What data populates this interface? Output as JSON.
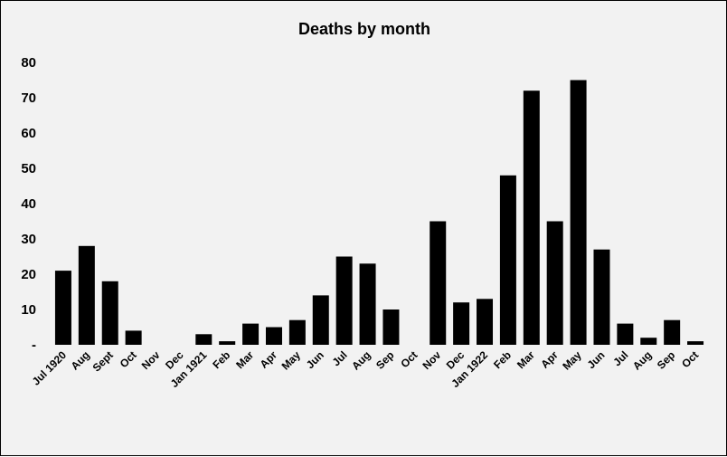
{
  "chart_data": {
    "type": "bar",
    "title": "Deaths by month",
    "xlabel": "",
    "ylabel": "",
    "ylim": [
      0,
      80
    ],
    "yticks": [
      0,
      10,
      20,
      30,
      40,
      50,
      60,
      70,
      80
    ],
    "ytick_labels": [
      "-",
      "10",
      "20",
      "30",
      "40",
      "50",
      "60",
      "70",
      "80"
    ],
    "grid": false,
    "bar_color": "#000000",
    "background": "#f2f2f2",
    "categories": [
      "Jul 1920",
      "Aug",
      "Sept",
      "Oct",
      "Nov",
      "Dec",
      "Jan 1921",
      "Feb",
      "Mar",
      "Apr",
      "May",
      "Jun",
      "Jul",
      "Aug",
      "Sep",
      "Oct",
      "Nov",
      "Dec",
      "Jan 1922",
      "Feb",
      "Mar",
      "Apr",
      "May",
      "Jun",
      "Jul",
      "Aug",
      "Sep",
      "Oct"
    ],
    "values": [
      21,
      28,
      18,
      4,
      0,
      0,
      3,
      1,
      6,
      5,
      7,
      14,
      25,
      23,
      10,
      0,
      35,
      12,
      13,
      48,
      72,
      35,
      75,
      27,
      6,
      2,
      7,
      1
    ]
  }
}
